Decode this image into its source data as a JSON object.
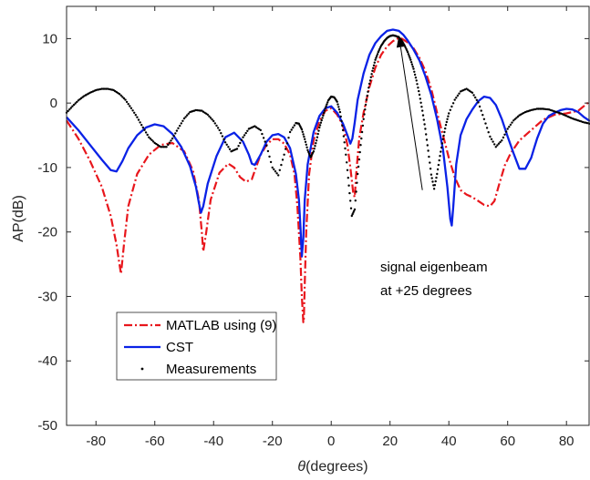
{
  "chart_data": {
    "type": "line",
    "xlabel_theta": "θ",
    "xlabel_rest": "(degrees)",
    "ylabel": "AP(dB)",
    "xlim": [
      -90,
      88
    ],
    "ylim": [
      -50,
      15
    ],
    "xticks": [
      -80,
      -60,
      -40,
      -20,
      0,
      20,
      40,
      60,
      80
    ],
    "yticks": [
      10,
      0,
      -10,
      -20,
      -30,
      -40,
      -50
    ],
    "grid": false,
    "legend_position": "lower-left",
    "annotation": {
      "line1": "signal eigenbeam",
      "line2": "at +25 degrees",
      "arrow_to": [
        23,
        10.5
      ],
      "arrow_from": [
        31,
        -13.5
      ]
    },
    "series": [
      {
        "name": "MATLAB using (9)",
        "color": "#e8161c",
        "style": "dashdot",
        "x": [
          -90,
          -86,
          -82,
          -78,
          -75,
          -73,
          -72,
          -71.5,
          -70.5,
          -69,
          -66,
          -62,
          -58,
          -54,
          -50,
          -47,
          -45,
          -44,
          -43.5,
          -42.5,
          -41,
          -38,
          -35,
          -33,
          -31,
          -29,
          -27,
          -26,
          -24,
          -22,
          -20,
          -18,
          -16,
          -14,
          -12.5,
          -11.5,
          -10.5,
          -10,
          -9.5,
          -9.3,
          -9,
          -8.5,
          -7.5,
          -6,
          -4,
          -2,
          0,
          2,
          4,
          5.5,
          6.5,
          7.5,
          8,
          8.5,
          9.5,
          11,
          13,
          15,
          17,
          19,
          21,
          22.5,
          24,
          26,
          28,
          30,
          32,
          34,
          36,
          38,
          40,
          42,
          44,
          46,
          48,
          50,
          52,
          54,
          55.5,
          57,
          59,
          61,
          64,
          68,
          72,
          76,
          80,
          84,
          88
        ],
        "y": [
          -2.7,
          -5.5,
          -9,
          -13,
          -17.5,
          -22,
          -25,
          -26.5,
          -22,
          -16,
          -11,
          -8,
          -6.5,
          -6.2,
          -7.5,
          -10.5,
          -15,
          -20,
          -23,
          -20,
          -15,
          -10.8,
          -9.4,
          -10,
          -11.5,
          -12.2,
          -11.8,
          -10.5,
          -8,
          -6.5,
          -5.6,
          -5.6,
          -6.3,
          -8,
          -11,
          -16,
          -24,
          -30,
          -34,
          -33.5,
          -28,
          -20,
          -11,
          -5.8,
          -2.8,
          -1.2,
          -0.8,
          -1.8,
          -3.5,
          -6.5,
          -10,
          -14,
          -14.6,
          -11,
          -5.5,
          -1.5,
          2.5,
          5.5,
          7.5,
          8.8,
          9.6,
          10,
          10,
          9.4,
          8.5,
          7,
          5,
          2.2,
          -1.5,
          -5,
          -8.5,
          -11.5,
          -13.5,
          -14.2,
          -14.6,
          -15.2,
          -15.8,
          -16,
          -15.2,
          -12.8,
          -9.7,
          -7.8,
          -5.8,
          -4.2,
          -2.6,
          -1.8,
          -1.6,
          -1.2,
          0.3
        ]
      },
      {
        "name": "CST",
        "color": "#0a22e6",
        "style": "solid",
        "x": [
          -90,
          -86,
          -82,
          -78,
          -75,
          -73,
          -71,
          -69,
          -66,
          -63,
          -60,
          -57,
          -54,
          -51,
          -48,
          -46,
          -45,
          -44.3,
          -43.5,
          -42,
          -39,
          -36,
          -33,
          -30,
          -28,
          -27,
          -26,
          -24,
          -22,
          -20,
          -18,
          -16,
          -14,
          -12,
          -11,
          -10.5,
          -10,
          -9.5,
          -9,
          -8,
          -6,
          -4,
          -2,
          0,
          2,
          4,
          5.5,
          6.5,
          7.2,
          8,
          9,
          11,
          13,
          15,
          17,
          19,
          21,
          23,
          24.5,
          26,
          28,
          30,
          32,
          34,
          36,
          38,
          39.5,
          40.5,
          41,
          41.5,
          42.5,
          44,
          46,
          48,
          50,
          52,
          54,
          56,
          58,
          60,
          62,
          64,
          66,
          68,
          69,
          70,
          72,
          74,
          76,
          78,
          80,
          82,
          84,
          86,
          88
        ],
        "y": [
          -2.2,
          -4.2,
          -6.5,
          -8.8,
          -10.4,
          -10.6,
          -9,
          -7,
          -5,
          -3.8,
          -3.3,
          -3.6,
          -4.8,
          -6.8,
          -9.8,
          -13,
          -15.5,
          -17,
          -16,
          -12.5,
          -8.2,
          -5.3,
          -4.6,
          -6,
          -8,
          -9.4,
          -9.6,
          -8,
          -6,
          -5,
          -4.8,
          -5.3,
          -7,
          -11,
          -15,
          -19,
          -23.8,
          -21,
          -15,
          -9.5,
          -4.5,
          -2,
          -0.8,
          -0.5,
          -1.5,
          -3.2,
          -5,
          -6.3,
          -5.5,
          -3,
          0.5,
          4.6,
          7.5,
          9.3,
          10.4,
          11.2,
          11.4,
          11.2,
          10.6,
          9.7,
          8.3,
          6.6,
          4.2,
          1.3,
          -2.5,
          -7.2,
          -13,
          -18,
          -19,
          -16,
          -9.5,
          -5,
          -2.5,
          -1,
          0.3,
          1,
          0.8,
          -0.3,
          -2.5,
          -5.2,
          -7.8,
          -10.2,
          -10.2,
          -8.5,
          -7,
          -5.5,
          -3.2,
          -2,
          -1.5,
          -1.1,
          -0.9,
          -1,
          -1.4,
          -2.2,
          -2.8
        ]
      },
      {
        "name": "Measurements",
        "color": "#000000",
        "style": "dots",
        "x": [
          -90,
          -88,
          -86,
          -84,
          -82,
          -80,
          -78,
          -76,
          -74,
          -72,
          -70,
          -68,
          -66,
          -64,
          -62,
          -60,
          -58,
          -56,
          -54,
          -52,
          -50,
          -48,
          -46,
          -44,
          -42,
          -40,
          -38,
          -36,
          -34,
          -32,
          -30,
          -28,
          -26,
          -24,
          -22,
          -20,
          -18,
          -16,
          -14,
          -12,
          -11,
          -10,
          -9,
          -8,
          -7,
          -6,
          -5,
          -4,
          -3,
          -2,
          -1,
          0,
          1,
          2,
          3,
          4,
          5,
          6,
          7,
          8,
          9,
          10,
          11,
          12,
          13,
          14,
          15,
          16,
          17,
          18,
          19,
          20,
          21,
          22,
          23,
          24,
          25,
          26,
          27,
          28,
          29,
          30,
          31,
          32,
          33,
          34,
          35,
          36,
          37,
          38,
          39,
          40,
          42,
          44,
          46,
          48,
          50,
          52,
          54,
          56,
          58,
          60,
          62,
          64,
          66,
          68,
          70,
          72,
          74,
          76,
          78,
          80,
          82,
          84,
          86,
          88
        ],
        "y": [
          -1.5,
          -0.5,
          0.4,
          1.1,
          1.6,
          2,
          2.2,
          2.2,
          2,
          1.4,
          0.5,
          -0.8,
          -2.2,
          -3.8,
          -5.3,
          -6.2,
          -6.8,
          -6.8,
          -5.5,
          -3.9,
          -2.4,
          -1.4,
          -1.1,
          -1.2,
          -1.8,
          -2.8,
          -4.2,
          -6.1,
          -7.5,
          -7.1,
          -5.3,
          -4,
          -3.6,
          -4.2,
          -6.6,
          -10,
          -11.2,
          -8,
          -4.5,
          -3.1,
          -3.2,
          -4.1,
          -5.6,
          -7.3,
          -8.4,
          -7.5,
          -5.8,
          -3.8,
          -2.3,
          -0.8,
          0.4,
          1,
          0.9,
          0.2,
          -1.4,
          -4.2,
          -8,
          -12.8,
          -17.5,
          -16.5,
          -11,
          -6.5,
          -2.5,
          0.5,
          3,
          5,
          6.7,
          7.9,
          8.9,
          9.6,
          10.1,
          10.4,
          10.5,
          10.4,
          10.2,
          9.7,
          8.9,
          7.9,
          6.7,
          5.3,
          3.5,
          1.3,
          -1.2,
          -4,
          -7.4,
          -11.1,
          -13.3,
          -11,
          -8.2,
          -5.6,
          -3.4,
          -1.6,
          0.5,
          1.8,
          2.2,
          1.6,
          0.1,
          -2.5,
          -5.2,
          -6.8,
          -5.8,
          -4,
          -2.7,
          -1.9,
          -1.4,
          -1.1,
          -0.9,
          -0.9,
          -1,
          -1.3,
          -1.6,
          -2,
          -2.4,
          -2.7,
          -3,
          -3.2
        ]
      }
    ]
  }
}
